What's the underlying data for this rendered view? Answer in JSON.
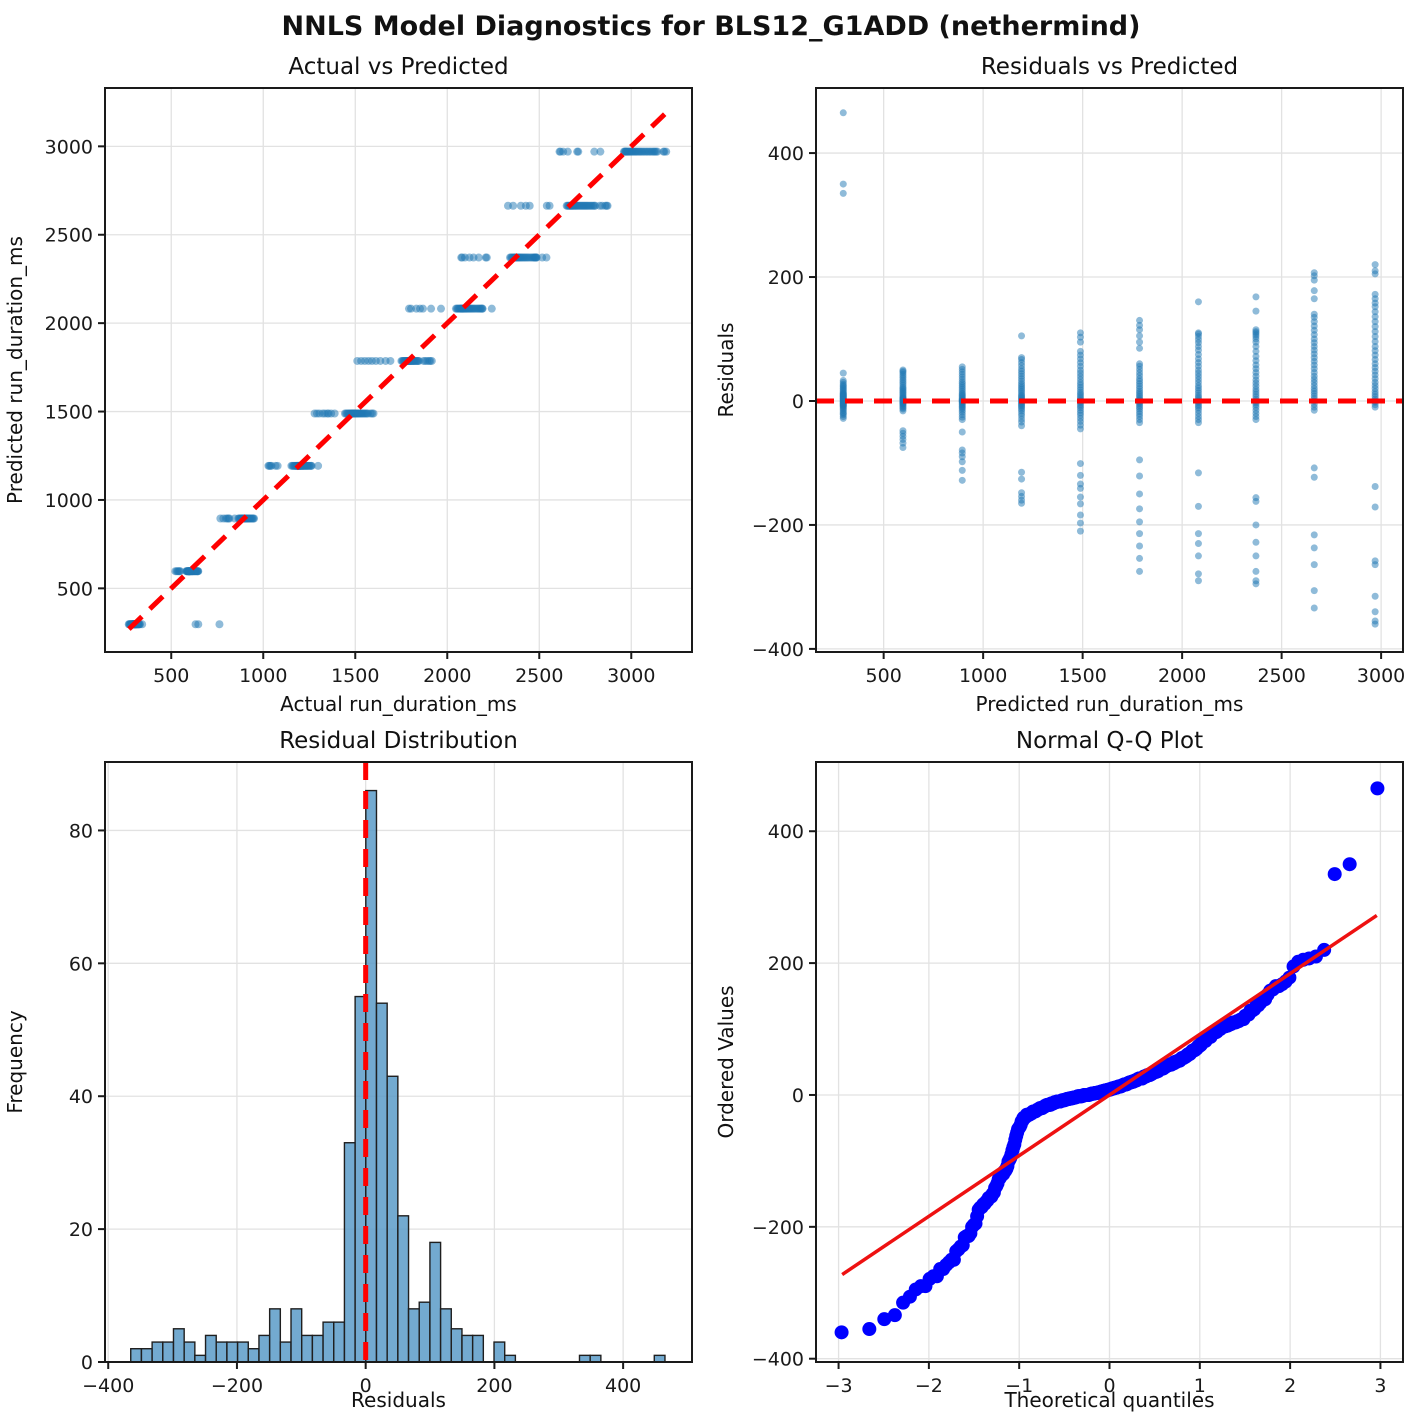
{
  "figure": {
    "title": "NNLS Model Diagnostics for BLS12_G1ADD (nethermind)"
  },
  "style": {
    "scatter_color": "#1f77b4",
    "qq_dot_color": "#0000ff",
    "ref_red": "#ff0000",
    "hist_fill": "#5b9bc8",
    "hist_edge": "#1f1f1f",
    "grid_color": "#e2e2e2",
    "spine_color": "#1a1a1a"
  },
  "chart_data": [
    {
      "id": "actual-vs-predicted",
      "type": "scatter",
      "series": "actual_vs_predicted",
      "title": "Actual vs Predicted",
      "xlabel": "Actual run_duration_ms",
      "ylabel": "Predicted run_duration_ms",
      "xlim": [
        140,
        3330
      ],
      "ylim": [
        140,
        3330
      ],
      "xticks": [
        500,
        1000,
        1500,
        2000,
        2500,
        3000
      ],
      "yticks": [
        500,
        1000,
        1500,
        2000,
        2500,
        3000
      ],
      "grid": true,
      "marker": {
        "r": 4,
        "color": "#1f77b4",
        "opacity": 0.5
      },
      "ref_line": {
        "kind": "segment",
        "x1": 270,
        "y1": 270,
        "x2": 3190,
        "y2": 3190,
        "dashed": true,
        "color": "#ff0000"
      }
    },
    {
      "id": "residuals-vs-predicted",
      "type": "scatter",
      "series": "residuals_vs_predicted",
      "title": "Residuals vs Predicted",
      "xlabel": "Predicted run_duration_ms",
      "ylabel": "Residuals",
      "xlim": [
        160,
        3110
      ],
      "ylim": [
        -405,
        505
      ],
      "xticks": [
        500,
        1000,
        1500,
        2000,
        2500,
        3000
      ],
      "yticks": [
        -400,
        -200,
        0,
        200,
        400
      ],
      "grid": true,
      "marker": {
        "r": 3.5,
        "color": "#1f77b4",
        "opacity": 0.5
      },
      "ref_line": {
        "kind": "hline",
        "y": 0,
        "dashed": true,
        "color": "#ff0000"
      }
    },
    {
      "id": "residual-distribution",
      "type": "histogram",
      "title": "Residual Distribution",
      "xlabel": "Residuals",
      "ylabel": "Frequency",
      "xlim": [
        -405,
        507
      ],
      "ylim": [
        0,
        90.3
      ],
      "xticks": [
        -400,
        -200,
        0,
        200,
        400
      ],
      "yticks": [
        0,
        20,
        40,
        60,
        80
      ],
      "grid": true,
      "bins": {
        "start": -365,
        "width": 16.6
      },
      "counts": [
        2,
        2,
        3,
        3,
        5,
        3,
        1,
        4,
        3,
        3,
        3,
        2,
        4,
        8,
        3,
        8,
        4,
        4,
        6,
        6,
        33,
        55,
        86,
        54,
        43,
        22,
        8,
        9,
        18,
        8,
        5,
        4,
        4,
        0,
        3,
        1,
        0,
        0,
        0,
        0,
        0,
        0,
        1,
        1,
        0,
        0,
        0,
        0,
        0,
        1
      ],
      "bar": {
        "fill": "#5b9bc8",
        "opacity": 0.85,
        "edge": "#1f1f1f"
      },
      "ref_line": {
        "kind": "vline",
        "x": 0,
        "dashed": true,
        "color": "#ff0000"
      }
    },
    {
      "id": "normal-qq-plot",
      "type": "qq",
      "title": "Normal Q-Q Plot",
      "xlabel": "Theoretical quantiles",
      "ylabel": "Ordered Values",
      "xlim": [
        -3.25,
        3.25
      ],
      "ylim": [
        -405,
        505
      ],
      "xticks": [
        -3,
        -2,
        -1,
        0,
        1,
        2,
        3
      ],
      "yticks": [
        -400,
        -200,
        0,
        200,
        400
      ],
      "grid": true,
      "marker": {
        "r": 7,
        "color": "#0000ff",
        "opacity": 1
      },
      "fit_line": {
        "slope": 92,
        "intercept": 0,
        "xrange": [
          -2.96,
          2.96
        ],
        "color": "#ee1111"
      }
    }
  ],
  "groups": [
    {
      "predicted": 297,
      "residuals": [
        -28,
        -25,
        -22,
        -20,
        -18,
        -15,
        -13,
        -11,
        -9,
        -8,
        -7,
        -6,
        -5,
        -4,
        -3,
        -2,
        -1,
        0,
        1,
        2,
        3,
        4,
        5,
        6,
        7,
        8,
        9,
        10,
        11,
        12,
        13,
        15,
        17,
        19,
        21,
        23,
        25,
        27,
        30,
        33,
        45,
        335,
        350,
        465
      ]
    },
    {
      "predicted": 597,
      "residuals": [
        -75,
        -68,
        -62,
        -57,
        -52,
        -48,
        -16,
        -13,
        -11,
        -9,
        -7,
        -5,
        -4,
        -3,
        -2,
        -1,
        0,
        1,
        2,
        3,
        4,
        5,
        6,
        8,
        10,
        12,
        14,
        16,
        18,
        20,
        22,
        25,
        28,
        31,
        34,
        37,
        40,
        43,
        46,
        48,
        50
      ]
    },
    {
      "predicted": 895,
      "residuals": [
        -128,
        -112,
        -98,
        -90,
        -84,
        -79,
        -50,
        -30,
        -26,
        -22,
        -18,
        -15,
        -12,
        -10,
        -8,
        -6,
        -4,
        -2,
        -1,
        0,
        1,
        2,
        3,
        5,
        7,
        9,
        11,
        13,
        16,
        19,
        22,
        25,
        28,
        31,
        35,
        39,
        43,
        47,
        51,
        55
      ]
    },
    {
      "predicted": 1193,
      "residuals": [
        -165,
        -160,
        -154,
        -148,
        -126,
        -115,
        -40,
        -34,
        -29,
        -24,
        -20,
        -16,
        -13,
        -10,
        -8,
        -6,
        -4,
        -2,
        0,
        2,
        4,
        6,
        8,
        10,
        13,
        16,
        19,
        22,
        25,
        28,
        32,
        36,
        40,
        44,
        48,
        52,
        57,
        62,
        67,
        70,
        105
      ]
    },
    {
      "predicted": 1489,
      "residuals": [
        -210,
        -197,
        -184,
        -166,
        -155,
        -141,
        -134,
        -120,
        -101,
        -45,
        -39,
        -33,
        -28,
        -23,
        -19,
        -15,
        -11,
        -8,
        -5,
        -2,
        0,
        2,
        5,
        8,
        11,
        14,
        18,
        22,
        26,
        30,
        35,
        40,
        45,
        50,
        56,
        62,
        68,
        74,
        80,
        95,
        103,
        110
      ]
    },
    {
      "predicted": 1786,
      "residuals": [
        -275,
        -254,
        -234,
        -214,
        -195,
        -174,
        -150,
        -121,
        -95,
        -35,
        -30,
        -25,
        -21,
        -17,
        -13,
        -10,
        -7,
        -4,
        -2,
        0,
        2,
        4,
        7,
        10,
        13,
        16,
        20,
        24,
        28,
        32,
        36,
        41,
        46,
        51,
        56,
        60,
        85,
        95,
        105,
        115,
        122,
        130
      ]
    },
    {
      "predicted": 2082,
      "residuals": [
        -290,
        -279,
        -250,
        -230,
        -214,
        -170,
        -116,
        -35,
        -30,
        -25,
        -20,
        -15,
        -11,
        -8,
        -5,
        -2,
        0,
        3,
        6,
        9,
        13,
        17,
        21,
        25,
        30,
        35,
        40,
        45,
        50,
        56,
        62,
        68,
        75,
        82,
        88,
        94,
        99,
        104,
        108,
        110,
        160
      ]
    },
    {
      "predicted": 2371,
      "residuals": [
        -295,
        -290,
        -275,
        -250,
        -228,
        -200,
        -162,
        -156,
        -30,
        -25,
        -20,
        -15,
        -10,
        -6,
        -3,
        0,
        3,
        7,
        11,
        15,
        19,
        24,
        29,
        34,
        40,
        46,
        52,
        58,
        65,
        72,
        80,
        88,
        95,
        100,
        104,
        107,
        110,
        112,
        115,
        145,
        168
      ]
    },
    {
      "predicted": 2664,
      "residuals": [
        -334,
        -306,
        -264,
        -237,
        -216,
        -123,
        -108,
        -15,
        -10,
        -5,
        0,
        4,
        8,
        12,
        16,
        20,
        25,
        30,
        35,
        40,
        46,
        52,
        58,
        64,
        70,
        76,
        82,
        88,
        94,
        100,
        107,
        114,
        121,
        128,
        135,
        140,
        165,
        178,
        195,
        202,
        207
      ]
    },
    {
      "predicted": 2970,
      "residuals": [
        -360,
        -355,
        -340,
        -315,
        -264,
        -258,
        -171,
        -138,
        -10,
        -6,
        -2,
        0,
        3,
        7,
        11,
        15,
        20,
        25,
        30,
        36,
        42,
        48,
        54,
        60,
        67,
        74,
        81,
        88,
        96,
        104,
        112,
        120,
        128,
        136,
        144,
        152,
        158,
        165,
        172,
        205,
        210,
        220
      ]
    }
  ]
}
